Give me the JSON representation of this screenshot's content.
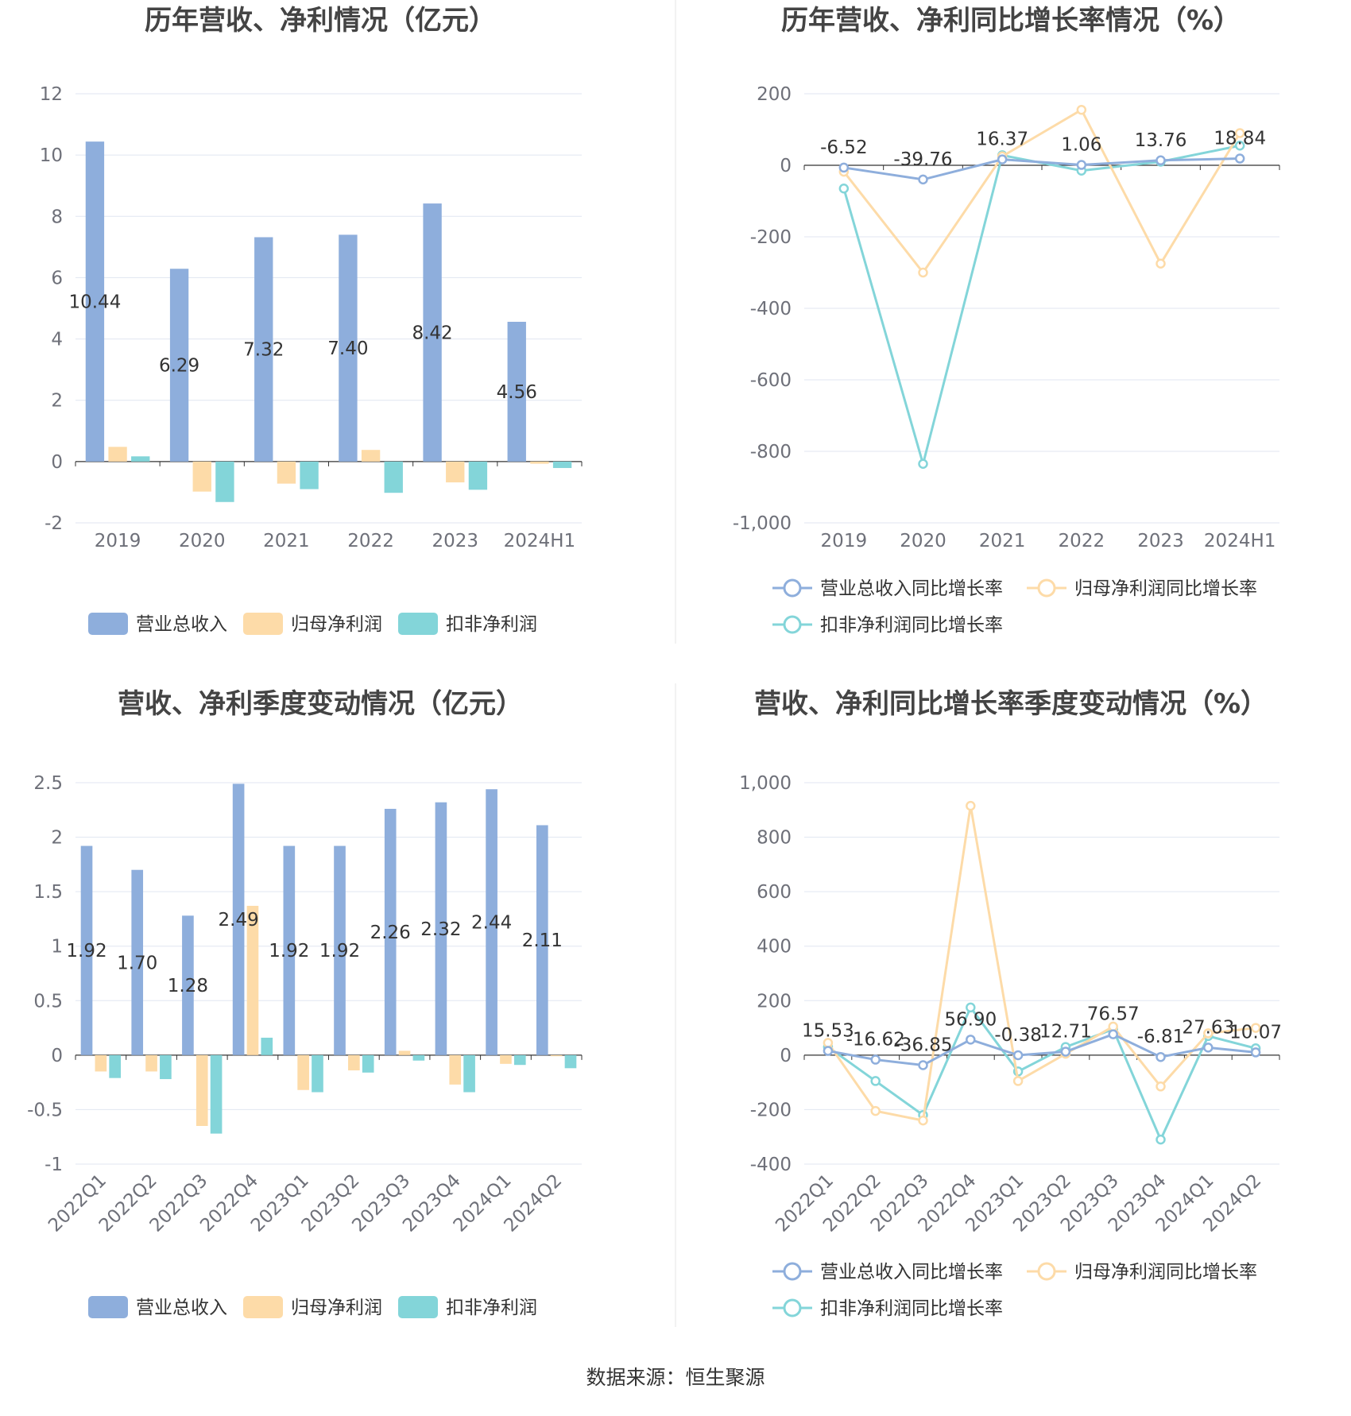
{
  "source": "数据来源：恒生聚源",
  "colors": {
    "revenue": "#8eaedc",
    "net_profit": "#fddba8",
    "deducted_profit": "#83d5d9",
    "revenue_line": "#8eaedc",
    "net_line": "#fddba8",
    "deducted_line": "#83d5d9"
  },
  "chart_data": [
    {
      "id": "annual_amounts",
      "type": "bar",
      "title": "历年营收、净利情况（亿元）",
      "categories": [
        "2019",
        "2020",
        "2021",
        "2022",
        "2023",
        "2024H1"
      ],
      "ylim": [
        -2,
        12
      ],
      "yticks": [
        -2,
        0,
        2,
        4,
        6,
        8,
        10,
        12
      ],
      "ytick_labels": [
        "-2",
        "0",
        "2",
        "4",
        "6",
        "8",
        "10",
        "12"
      ],
      "grid": true,
      "legend": "bottom",
      "series": [
        {
          "name": "营业总收入",
          "color": "#8eaedc",
          "values": [
            10.44,
            6.29,
            7.32,
            7.4,
            8.42,
            4.56
          ],
          "labels": [
            "10.44",
            "6.29",
            "7.32",
            "7.40",
            "8.42",
            "4.56"
          ]
        },
        {
          "name": "归母净利润",
          "color": "#fddba8",
          "values": [
            0.48,
            -0.98,
            -0.72,
            0.38,
            -0.68,
            -0.07
          ]
        },
        {
          "name": "扣非净利润",
          "color": "#83d5d9",
          "values": [
            0.17,
            -1.32,
            -0.9,
            -1.02,
            -0.92,
            -0.21
          ]
        }
      ]
    },
    {
      "id": "annual_growth",
      "type": "line",
      "title": "历年营收、净利同比增长率情况（%）",
      "categories": [
        "2019",
        "2020",
        "2021",
        "2022",
        "2023",
        "2024H1"
      ],
      "ylim": [
        -1000,
        200
      ],
      "yticks": [
        -1000,
        -800,
        -600,
        -400,
        -200,
        0,
        200
      ],
      "ytick_labels": [
        "-1,000",
        "-800",
        "-600",
        "-400",
        "-200",
        "0",
        "200"
      ],
      "grid": true,
      "legend": "bottom",
      "series": [
        {
          "name": "营业总收入同比增长率",
          "color": "#8eaedc",
          "values": [
            -6.52,
            -39.76,
            16.37,
            1.06,
            13.76,
            18.84
          ],
          "labels": [
            "-6.52",
            "-39.76",
            "16.37",
            "1.06",
            "13.76",
            "18.84"
          ]
        },
        {
          "name": "归母净利润同比增长率",
          "color": "#fddba8",
          "values": [
            -18,
            -300,
            25,
            155,
            -275,
            90
          ]
        },
        {
          "name": "扣非净利润同比增长率",
          "color": "#83d5d9",
          "values": [
            -65,
            -835,
            28,
            -15,
            10,
            55
          ]
        }
      ]
    },
    {
      "id": "quarterly_amounts",
      "type": "bar",
      "title": "营收、净利季度变动情况（亿元）",
      "categories": [
        "2022Q1",
        "2022Q2",
        "2022Q3",
        "2022Q4",
        "2023Q1",
        "2023Q2",
        "2023Q3",
        "2023Q4",
        "2024Q1",
        "2024Q2"
      ],
      "ylim": [
        -1,
        2.5
      ],
      "yticks": [
        -1,
        -0.5,
        0,
        0.5,
        1,
        1.5,
        2,
        2.5
      ],
      "ytick_labels": [
        "-1",
        "-0.5",
        "0",
        "0.5",
        "1",
        "1.5",
        "2",
        "2.5"
      ],
      "grid": true,
      "legend": "bottom",
      "series": [
        {
          "name": "营业总收入",
          "color": "#8eaedc",
          "values": [
            1.92,
            1.7,
            1.28,
            2.49,
            1.92,
            1.92,
            2.26,
            2.32,
            2.44,
            2.11
          ],
          "labels": [
            "1.92",
            "1.70",
            "1.28",
            "2.49",
            "1.92",
            "1.92",
            "2.26",
            "2.32",
            "2.44",
            "2.11"
          ]
        },
        {
          "name": "归母净利润",
          "color": "#fddba8",
          "values": [
            -0.15,
            -0.15,
            -0.65,
            1.37,
            -0.32,
            -0.14,
            0.04,
            -0.27,
            -0.08,
            -0.01
          ]
        },
        {
          "name": "扣非净利润",
          "color": "#83d5d9",
          "values": [
            -0.21,
            -0.22,
            -0.72,
            0.16,
            -0.34,
            -0.16,
            -0.05,
            -0.34,
            -0.09,
            -0.12
          ]
        }
      ]
    },
    {
      "id": "quarterly_growth",
      "type": "line",
      "title": "营收、净利同比增长率季度变动情况（%）",
      "categories": [
        "2022Q1",
        "2022Q2",
        "2022Q3",
        "2022Q4",
        "2023Q1",
        "2023Q2",
        "2023Q3",
        "2023Q4",
        "2024Q1",
        "2024Q2"
      ],
      "ylim": [
        -400,
        1000
      ],
      "yticks": [
        -400,
        -200,
        0,
        200,
        400,
        600,
        800,
        1000
      ],
      "ytick_labels": [
        "-400",
        "-200",
        "0",
        "200",
        "400",
        "600",
        "800",
        "1,000"
      ],
      "grid": true,
      "legend": "bottom",
      "series": [
        {
          "name": "营业总收入同比增长率",
          "color": "#8eaedc",
          "values": [
            15.53,
            -16.62,
            -36.85,
            56.9,
            -0.38,
            12.71,
            76.57,
            -6.81,
            27.63,
            10.07
          ],
          "labels": [
            "15.53",
            "-16.62",
            "-36.85",
            "56.90",
            "-0.38",
            "12.71",
            "76.57",
            "-6.81",
            "27.63",
            "10.07"
          ]
        },
        {
          "name": "归母净利润同比增长率",
          "color": "#fddba8",
          "values": [
            45,
            -205,
            -240,
            915,
            -95,
            5,
            105,
            -115,
            80,
            100
          ]
        },
        {
          "name": "扣非净利润同比增长率",
          "color": "#83d5d9",
          "values": [
            30,
            -95,
            -220,
            175,
            -60,
            30,
            95,
            -310,
            70,
            25
          ]
        }
      ]
    }
  ]
}
